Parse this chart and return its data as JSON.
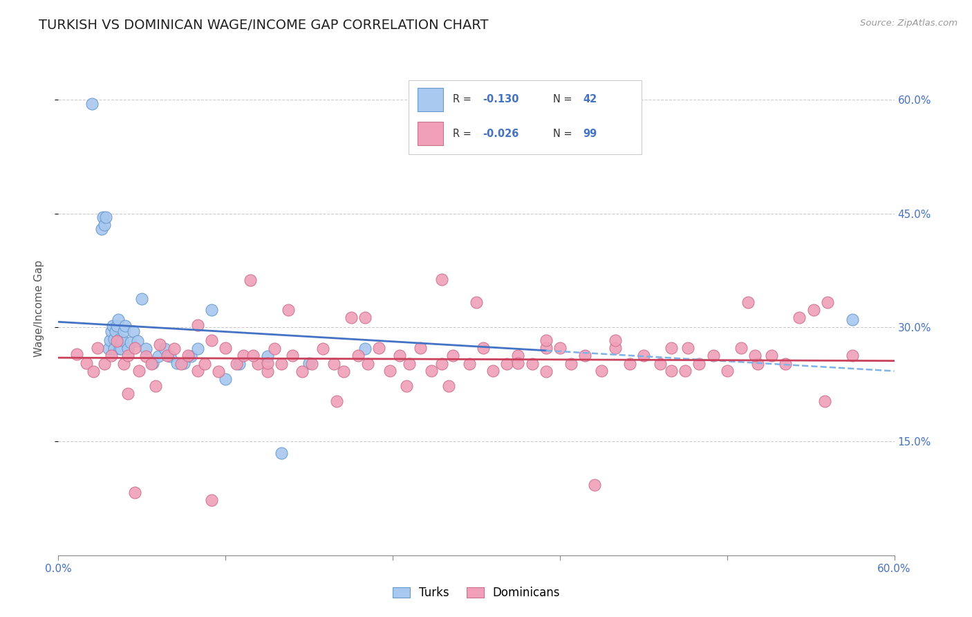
{
  "title": "TURKISH VS DOMINICAN WAGE/INCOME GAP CORRELATION CHART",
  "source_text": "Source: ZipAtlas.com",
  "ylabel": "Wage/Income Gap",
  "xlim": [
    0.0,
    0.6
  ],
  "ylim": [
    0.0,
    0.65
  ],
  "ytick_positions": [
    0.15,
    0.3,
    0.45,
    0.6
  ],
  "ytick_labels": [
    "15.0%",
    "30.0%",
    "45.0%",
    "60.0%"
  ],
  "grid_color": "#cccccc",
  "background_color": "#ffffff",
  "title_fontsize": 14,
  "turks_color": "#a8c8f0",
  "turks_edge_color": "#6699cc",
  "dominicans_color": "#f0a0b8",
  "dominicans_edge_color": "#cc7090",
  "turks_R": -0.13,
  "turks_N": 42,
  "dominicans_R": -0.026,
  "dominicans_N": 99,
  "trend_blue_color": "#4472c4",
  "trend_pink_color": "#c9415a",
  "trend_dashed_color": "#7fb3e8",
  "turks_x": [
    0.024,
    0.031,
    0.032,
    0.033,
    0.034,
    0.036,
    0.037,
    0.038,
    0.039,
    0.04,
    0.04,
    0.041,
    0.042,
    0.043,
    0.044,
    0.044,
    0.045,
    0.046,
    0.047,
    0.048,
    0.05,
    0.052,
    0.054,
    0.057,
    0.06,
    0.063,
    0.068,
    0.072,
    0.076,
    0.08,
    0.085,
    0.09,
    0.095,
    0.1,
    0.11,
    0.12,
    0.13,
    0.15,
    0.16,
    0.18,
    0.22,
    0.57
  ],
  "turks_y": [
    0.595,
    0.43,
    0.445,
    0.435,
    0.445,
    0.272,
    0.283,
    0.295,
    0.302,
    0.272,
    0.285,
    0.295,
    0.302,
    0.31,
    0.272,
    0.285,
    0.272,
    0.283,
    0.295,
    0.302,
    0.272,
    0.28,
    0.295,
    0.282,
    0.338,
    0.272,
    0.253,
    0.262,
    0.272,
    0.262,
    0.253,
    0.253,
    0.262,
    0.272,
    0.323,
    0.232,
    0.252,
    0.262,
    0.135,
    0.253,
    0.272,
    0.31
  ],
  "dominicans_x": [
    0.013,
    0.02,
    0.025,
    0.028,
    0.033,
    0.038,
    0.042,
    0.047,
    0.05,
    0.055,
    0.058,
    0.063,
    0.067,
    0.073,
    0.078,
    0.083,
    0.088,
    0.093,
    0.1,
    0.105,
    0.11,
    0.115,
    0.12,
    0.128,
    0.133,
    0.138,
    0.143,
    0.15,
    0.155,
    0.16,
    0.168,
    0.175,
    0.182,
    0.19,
    0.198,
    0.205,
    0.215,
    0.222,
    0.23,
    0.238,
    0.245,
    0.252,
    0.26,
    0.268,
    0.275,
    0.283,
    0.295,
    0.305,
    0.312,
    0.322,
    0.33,
    0.34,
    0.35,
    0.36,
    0.368,
    0.378,
    0.39,
    0.4,
    0.41,
    0.42,
    0.432,
    0.44,
    0.452,
    0.46,
    0.47,
    0.48,
    0.49,
    0.502,
    0.512,
    0.522,
    0.532,
    0.542,
    0.552,
    0.05,
    0.1,
    0.15,
    0.2,
    0.25,
    0.3,
    0.35,
    0.4,
    0.45,
    0.5,
    0.055,
    0.11,
    0.165,
    0.22,
    0.275,
    0.33,
    0.385,
    0.44,
    0.495,
    0.55,
    0.07,
    0.14,
    0.21,
    0.28,
    0.35,
    0.57
  ],
  "dominicans_y": [
    0.265,
    0.253,
    0.242,
    0.273,
    0.252,
    0.263,
    0.282,
    0.252,
    0.263,
    0.273,
    0.243,
    0.262,
    0.252,
    0.278,
    0.263,
    0.272,
    0.252,
    0.263,
    0.243,
    0.252,
    0.283,
    0.242,
    0.273,
    0.252,
    0.263,
    0.362,
    0.252,
    0.242,
    0.272,
    0.252,
    0.263,
    0.242,
    0.252,
    0.272,
    0.252,
    0.242,
    0.263,
    0.252,
    0.273,
    0.243,
    0.263,
    0.252,
    0.273,
    0.243,
    0.252,
    0.263,
    0.252,
    0.273,
    0.243,
    0.252,
    0.263,
    0.252,
    0.242,
    0.273,
    0.252,
    0.263,
    0.243,
    0.273,
    0.252,
    0.263,
    0.252,
    0.243,
    0.273,
    0.252,
    0.263,
    0.243,
    0.273,
    0.252,
    0.263,
    0.252,
    0.313,
    0.323,
    0.333,
    0.213,
    0.303,
    0.253,
    0.203,
    0.223,
    0.333,
    0.273,
    0.283,
    0.243,
    0.263,
    0.083,
    0.073,
    0.323,
    0.313,
    0.363,
    0.253,
    0.093,
    0.273,
    0.333,
    0.203,
    0.223,
    0.263,
    0.313,
    0.223,
    0.283,
    0.263
  ]
}
